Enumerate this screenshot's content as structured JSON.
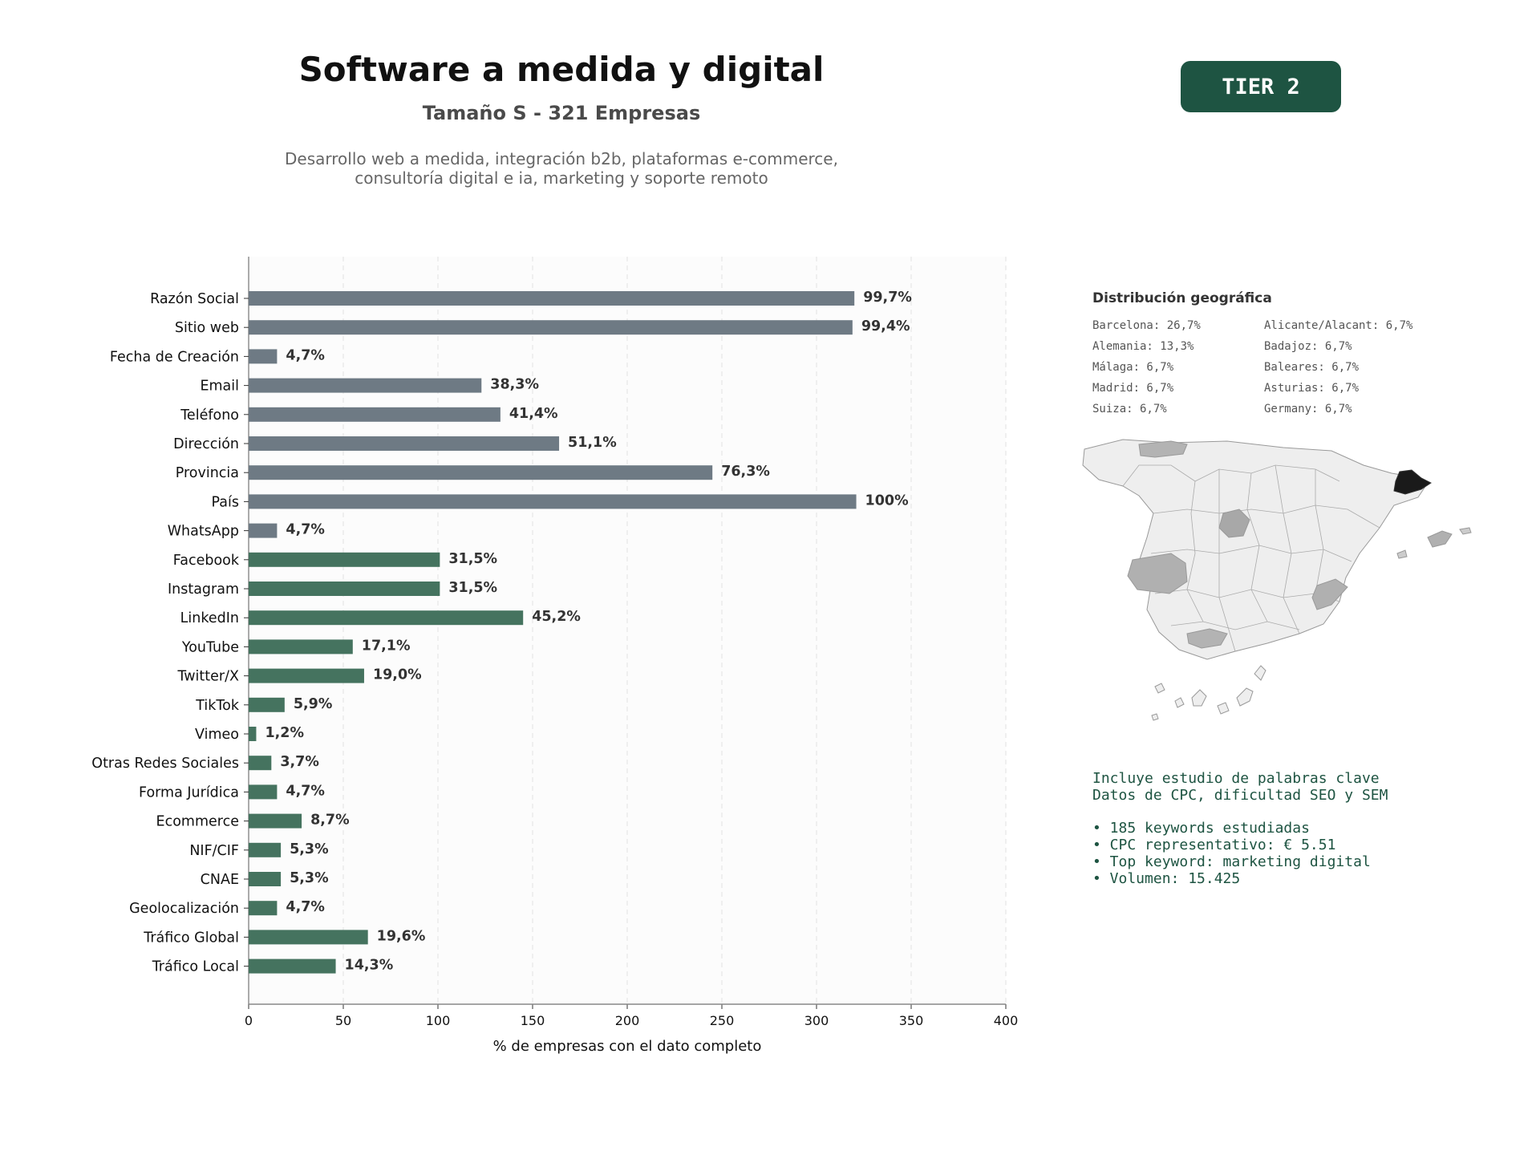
{
  "header": {
    "title": "Software a medida y digital",
    "subtitle": "Tamaño S - 321 Empresas",
    "description_line1": "Desarrollo web a medida, integración b2b, plataformas e-commerce,",
    "description_line2": "consultoría digital e ia, marketing y soporte remoto",
    "tier_label": "TIER 2"
  },
  "chart_data": {
    "type": "bar",
    "orientation": "horizontal",
    "categories": [
      "Razón Social",
      "Sitio web",
      "Fecha de Creación",
      "Email",
      "Teléfono",
      "Dirección",
      "Provincia",
      "País",
      "WhatsApp",
      "Facebook",
      "Instagram",
      "LinkedIn",
      "YouTube",
      "Twitter/X",
      "TikTok",
      "Vimeo",
      "Otras Redes Sociales",
      "Forma Jurídica",
      "Ecommerce",
      "NIF/CIF",
      "CNAE",
      "Geolocalización",
      "Tráfico Global",
      "Tráfico Local"
    ],
    "values": [
      320,
      319,
      15,
      123,
      133,
      164,
      245,
      321,
      15,
      101,
      101,
      145,
      55,
      61,
      19,
      4,
      12,
      15,
      28,
      17,
      17,
      15,
      63,
      46
    ],
    "labels": [
      "99,7%",
      "99,4%",
      "4,7%",
      "38,3%",
      "41,4%",
      "51,1%",
      "76,3%",
      "100%",
      "4,7%",
      "31,5%",
      "31,5%",
      "45,2%",
      "17,1%",
      "19,0%",
      "5,9%",
      "1,2%",
      "3,7%",
      "4,7%",
      "8,7%",
      "5,3%",
      "5,3%",
      "4,7%",
      "19,6%",
      "14,3%"
    ],
    "xlabel": "% de empresas con el dato completo",
    "xlim": [
      0,
      400
    ],
    "xticks": [
      0,
      50,
      100,
      150,
      200,
      250,
      300,
      350,
      400
    ],
    "grid": "vertical dashed",
    "colors": {
      "group_a": "#6e7a84",
      "group_b": "#45735f",
      "group_a_count": 9
    }
  },
  "geo": {
    "title": "Distribución geográfica",
    "items": [
      "Barcelona: 26,7%",
      "Alicante/Alacant: 6,7%",
      "Alemania: 13,3%",
      "Badajoz: 6,7%",
      "Málaga: 6,7%",
      "Baleares: 6,7%",
      "Madrid: 6,7%",
      "Asturias: 6,7%",
      "Suiza: 6,7%",
      "Germany: 6,7%"
    ]
  },
  "keywords": {
    "line1": "Incluye estudio de palabras clave",
    "line2": "Datos de CPC, dificultad SEO y SEM",
    "bullets": [
      "• 185 keywords estudiadas",
      "• CPC representativo: € 5.51",
      "• Top keyword: marketing digital",
      "• Volumen: 15.425"
    ]
  }
}
